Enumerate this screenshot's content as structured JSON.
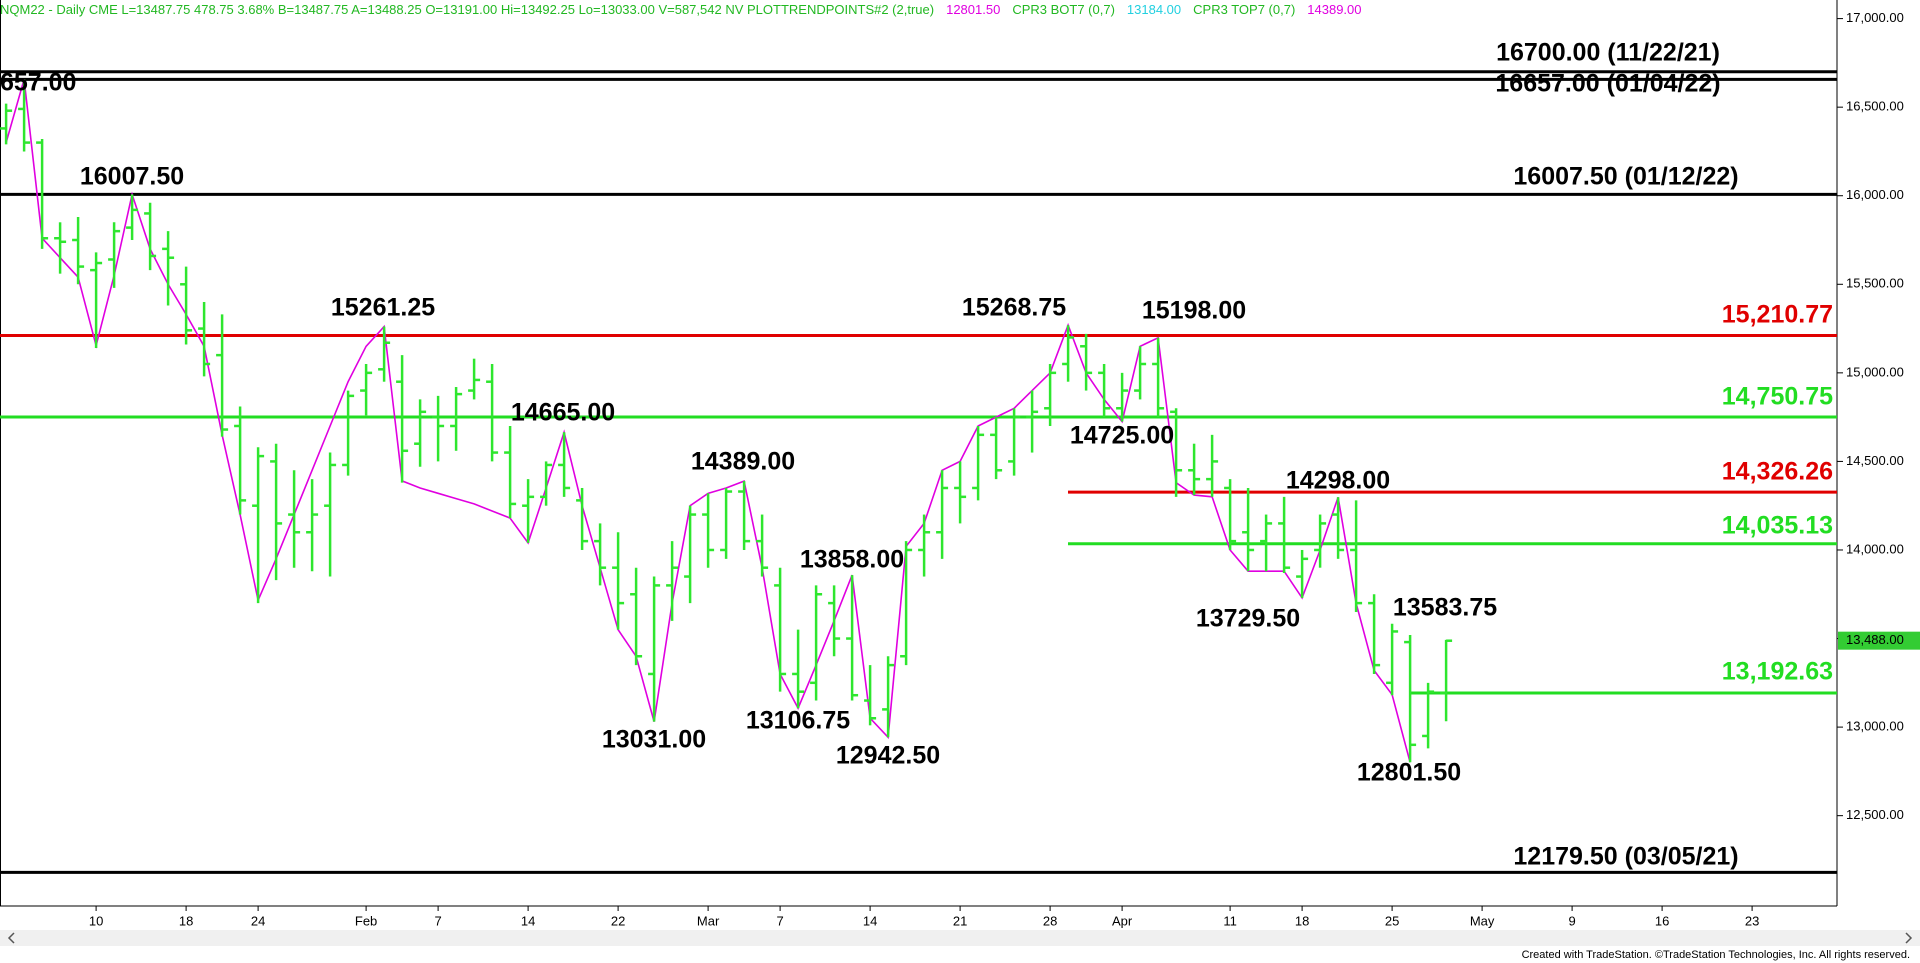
{
  "header": {
    "items": [
      {
        "text": "NQM22 - Daily  CME  L=13487.75  478.75  3.68%  B=13487.75  A=13488.25  O=13191.00  Hi=13492.25  Lo=13033.00  V=587,542  NV  PLOTTRENDPOINTS#2 (2,true)",
        "color": "#22b822"
      },
      {
        "text": "12801.50",
        "color": "#e000e0"
      },
      {
        "text": "CPR3 BOT7 (0,7)",
        "color": "#22b822"
      },
      {
        "text": "13184.00",
        "color": "#22d0e0"
      },
      {
        "text": "CPR3 TOP7 (0,7)",
        "color": "#22b822"
      },
      {
        "text": "14389.00",
        "color": "#e000e0"
      }
    ]
  },
  "chart_data": {
    "type": "ohlc",
    "categories": [
      null,
      null,
      null,
      null,
      null,
      "10",
      null,
      null,
      null,
      null,
      "18",
      null,
      null,
      null,
      "24",
      null,
      null,
      null,
      null,
      null,
      "Feb",
      null,
      null,
      null,
      "7",
      null,
      null,
      null,
      null,
      "14",
      null,
      null,
      null,
      null,
      "22",
      null,
      null,
      null,
      null,
      "Mar",
      null,
      null,
      null,
      "7",
      null,
      null,
      null,
      null,
      "14",
      null,
      null,
      null,
      null,
      "21",
      null,
      null,
      null,
      null,
      "28",
      null,
      null,
      null,
      "Apr",
      null,
      null,
      null,
      null,
      null,
      "11",
      null,
      null,
      null,
      "18",
      null,
      null,
      null,
      null,
      "25",
      null,
      null,
      null,
      null,
      "May",
      null,
      null,
      null,
      null,
      "9",
      null,
      null,
      null,
      null,
      "16",
      null,
      null,
      null,
      null,
      "23",
      null,
      null,
      null,
      null
    ],
    "open": [
      16380,
      16490,
      16300,
      15760,
      15750,
      15580,
      15640,
      15820,
      15900,
      15700,
      15500,
      15250,
      15100,
      14700,
      14250,
      14500,
      14200,
      14100,
      14250,
      14480,
      14900,
      15020,
      14950,
      14600,
      14750,
      14700,
      14900,
      14950,
      14550,
      14250,
      14300,
      14480,
      14280,
      14050,
      13900,
      13750,
      13300,
      13800,
      13850,
      14200,
      14000,
      14330,
      14050,
      13800,
      13300,
      13250,
      13700,
      13500,
      13150,
      13100,
      13400,
      14000,
      14100,
      14350,
      14350,
      14650,
      14500,
      14750,
      14800,
      15050,
      15150,
      15000,
      14800,
      14900,
      15050,
      14780,
      14450,
      14400,
      14350,
      14100,
      14050,
      14150,
      13850,
      14000,
      14200,
      14000,
      13700,
      13250,
      13480,
      12950,
      13191,
      null,
      null,
      null,
      null,
      null,
      null,
      null,
      null,
      null,
      null,
      null,
      null,
      null,
      null,
      null,
      null,
      null,
      null,
      null,
      null,
      null
    ],
    "high": [
      16520,
      16657,
      16320,
      15850,
      15880,
      15680,
      15850,
      16007.5,
      15960,
      15800,
      15600,
      15400,
      15330,
      14810,
      14580,
      14600,
      14450,
      14400,
      14550,
      14900,
      15050,
      15261.25,
      15100,
      14850,
      14870,
      14920,
      15080,
      15050,
      14700,
      14400,
      14500,
      14665,
      14350,
      14150,
      14100,
      13900,
      13850,
      14050,
      14250,
      14320,
      14350,
      14389,
      14200,
      13900,
      13550,
      13800,
      13800,
      13858,
      13350,
      13400,
      14050,
      14200,
      14450,
      14500,
      14700,
      14750,
      14800,
      14900,
      15050,
      15268.75,
      15220,
      15050,
      15000,
      15150,
      15198,
      14800,
      14600,
      14650,
      14400,
      14350,
      14200,
      14300,
      14000,
      14200,
      14298,
      14280,
      13750,
      13583.75,
      13520,
      13250,
      13492.25,
      null,
      null,
      null,
      null,
      null,
      null,
      null,
      null,
      null,
      null,
      null,
      null,
      null,
      null,
      null,
      null,
      null,
      null,
      null,
      null,
      null
    ],
    "low": [
      16290,
      16250,
      15700,
      15560,
      15500,
      15140,
      15480,
      15750,
      15580,
      15380,
      15160,
      14980,
      14640,
      14200,
      13700,
      13830,
      13900,
      13880,
      13850,
      14420,
      14760,
      14950,
      14380,
      14470,
      14500,
      14560,
      14850,
      14500,
      14180,
      14040,
      14250,
      14300,
      14000,
      13800,
      13550,
      13350,
      13031,
      13600,
      13700,
      13900,
      13950,
      14000,
      13850,
      13200,
      13106.75,
      13150,
      13400,
      13150,
      13010,
      12942.5,
      13350,
      13850,
      13950,
      14150,
      14280,
      14400,
      14420,
      14550,
      14700,
      14950,
      14900,
      14750,
      14725,
      14850,
      14750,
      14300,
      14310,
      14300,
      14000,
      13880,
      13880,
      13870,
      13729.5,
      13900,
      13950,
      13650,
      13300,
      13180,
      12801.5,
      12880,
      13033,
      null,
      null,
      null,
      null,
      null,
      null,
      null,
      null,
      null,
      null,
      null,
      null,
      null,
      null,
      null,
      null,
      null,
      null,
      null,
      null,
      null
    ],
    "close": [
      16480,
      16300,
      15760,
      15740,
      15600,
      15620,
      15800,
      15920,
      15660,
      15650,
      15240,
      15050,
      14680,
      14280,
      14530,
      14150,
      14100,
      14200,
      14480,
      14870,
      15000,
      15170,
      14560,
      14780,
      14700,
      14880,
      14960,
      14550,
      14260,
      14300,
      14480,
      14350,
      14050,
      13900,
      13700,
      13400,
      13800,
      13900,
      14200,
      14000,
      14330,
      14050,
      13900,
      13300,
      13200,
      13750,
      13500,
      13180,
      13050,
      13350,
      14000,
      14100,
      14350,
      14300,
      14650,
      14450,
      14750,
      14780,
      15000,
      15200,
      15000,
      14800,
      14900,
      15050,
      14800,
      14450,
      14400,
      14500,
      14050,
      14000,
      14150,
      13900,
      13950,
      14150,
      14000,
      13700,
      13350,
      13540,
      12900,
      13200,
      13487.75,
      null,
      null,
      null,
      null,
      null,
      null,
      null,
      null,
      null,
      null,
      null,
      null,
      null,
      null,
      null,
      null,
      null,
      null,
      null,
      null,
      null
    ],
    "bar_color": "#2ee62e",
    "trend": {
      "color": "#e000e0",
      "values": [
        16300,
        16657,
        15760,
        15650,
        15540,
        15154,
        15550,
        16007.5,
        15700,
        15500,
        15330,
        15150,
        14650,
        14200,
        13716,
        13950,
        14200,
        14450,
        14700,
        14950,
        15150,
        15261.25,
        14390,
        14350,
        14320,
        14290,
        14260,
        14220,
        14180,
        14040,
        14350,
        14665,
        14250,
        13900,
        13550,
        13400,
        13031,
        13700,
        14250,
        14320,
        14350,
        14389,
        13900,
        13300,
        13106.75,
        13350,
        13600,
        13858,
        13050,
        12942.5,
        14020,
        14150,
        14450,
        14500,
        14700,
        14750,
        14800,
        14900,
        15000,
        15268.75,
        15000,
        14850,
        14725,
        15150,
        15198,
        14380,
        14310,
        14300,
        14000,
        13880,
        13880,
        13880,
        13729.5,
        14000,
        14298,
        13700,
        13320,
        13183,
        12801.5,
        null,
        null,
        null,
        null,
        null,
        null,
        null,
        null,
        null,
        null,
        null,
        null,
        null,
        null,
        null,
        null,
        null,
        null,
        null,
        null,
        null,
        null,
        null
      ]
    },
    "levels": [
      {
        "value": 16700,
        "label": "16700.00 (11/22/21)",
        "color": "#000000"
      },
      {
        "value": 16657,
        "label": "16657.00 (01/04/22)",
        "color": "#000000"
      },
      {
        "value": 16007.5,
        "label": "16007.50 (01/12/22)",
        "color": "#000000"
      },
      {
        "value": 15210.77,
        "label": "15,210.77",
        "color": "#e00000"
      },
      {
        "value": 14750.75,
        "label": "14,750.75",
        "color": "#22dd22"
      },
      {
        "value": 14326.26,
        "label": "14,326.26",
        "color": "#e00000"
      },
      {
        "value": 14035.13,
        "label": "14,035.13",
        "color": "#22dd22"
      },
      {
        "value": 13192.63,
        "label": "13,192.63",
        "color": "#22dd22"
      },
      {
        "value": 12179.5,
        "label": "12179.50 (03/05/21)",
        "color": "#000000"
      }
    ],
    "annotations": [
      "657.00",
      "16007.50",
      "15261.25",
      "14665.00",
      "14389.00",
      "13031.00",
      "13106.75",
      "13858.00",
      "12942.50",
      "15268.75",
      "15198.00",
      "14725.00",
      "14298.00",
      "13729.50",
      "13583.75",
      "12801.50"
    ],
    "ylim": [
      11990,
      17105
    ],
    "yticks": [
      {
        "value": 17000,
        "label": "17,000.00"
      },
      {
        "value": 16500,
        "label": "16,500.00"
      },
      {
        "value": 16000,
        "label": "16,000.00"
      },
      {
        "value": 15500,
        "label": "15,500.00"
      },
      {
        "value": 15000,
        "label": "15,000.00"
      },
      {
        "value": 14500,
        "label": "14,500.00"
      },
      {
        "value": 14000,
        "label": "14,000.00"
      },
      {
        "value": 13500,
        "label": "13,500.00"
      },
      {
        "value": 13000,
        "label": "13,000.00"
      },
      {
        "value": 12500,
        "label": "12,500.00"
      }
    ],
    "last_price": {
      "value": 13488,
      "label": "13,488.00",
      "color": "#33cc33"
    }
  },
  "footer": "Created with TradeStation. ©TradeStation Technologies, Inc. All rights reserved."
}
